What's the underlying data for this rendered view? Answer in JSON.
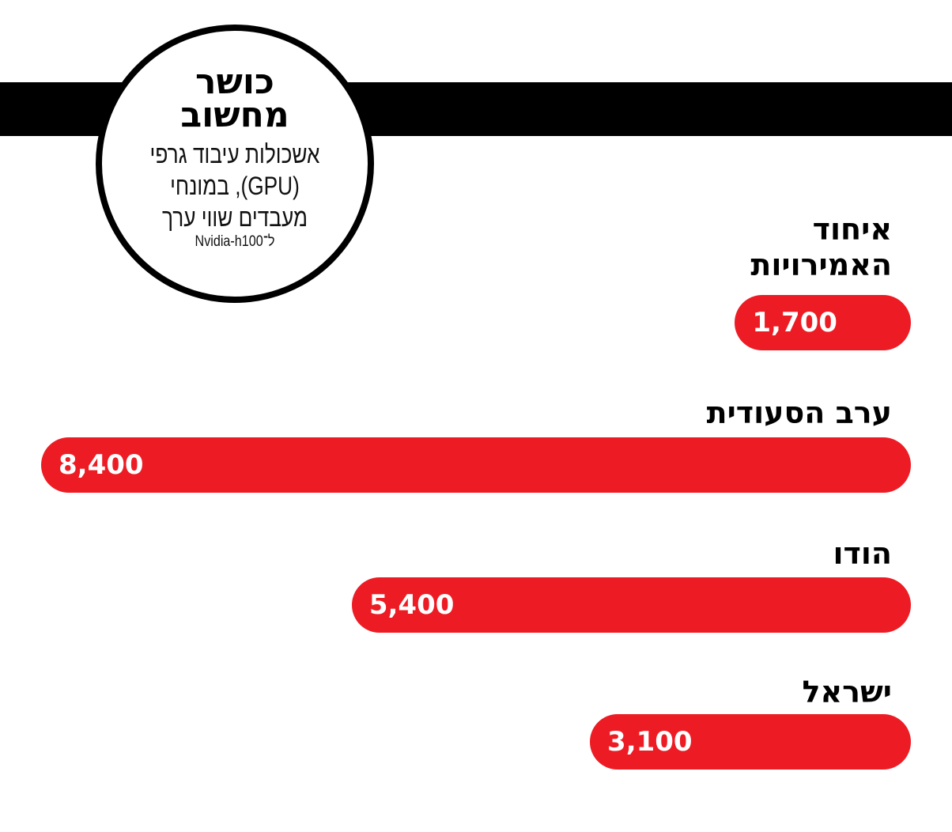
{
  "header": {
    "title": "כושר מחשוב",
    "subtitle": "אשכולות עיבוד גרפי (GPU), במונחי מעבדים שווי ערך",
    "note": "ל־Nvidia-h100"
  },
  "chart_data": {
    "type": "bar",
    "orientation": "horizontal",
    "title": "כושר מחשוב",
    "categories": [
      "איחוד האמירויות",
      "ערב הסעודית",
      "הודו",
      "ישראל"
    ],
    "values": [
      1700,
      8400,
      5400,
      3100
    ],
    "value_labels": [
      "1,700",
      "8,400",
      "5,400",
      "3,100"
    ],
    "bar_color": "#ED1C24",
    "grid": false
  }
}
